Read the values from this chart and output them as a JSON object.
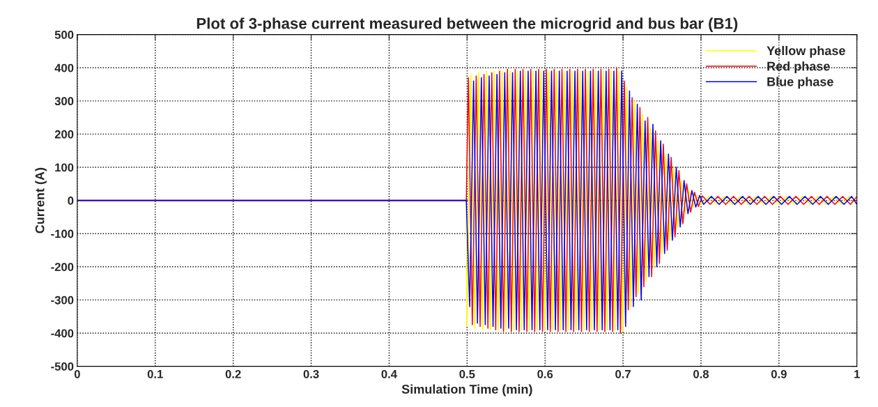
{
  "chart_data": {
    "type": "line",
    "title": "Plot of 3-phase current measured between the microgrid and bus bar (B1)",
    "xlabel": "Simulation Time (min)",
    "ylabel": "Current (A)",
    "xlim": [
      0,
      1
    ],
    "xticks": [
      0,
      0.1,
      0.2,
      0.3,
      0.4,
      0.5,
      0.6,
      0.7,
      0.8,
      0.9,
      1
    ],
    "ylim": [
      -500,
      500
    ],
    "yticks": [
      -500,
      -400,
      -300,
      -200,
      -100,
      0,
      100,
      200,
      300,
      400,
      500
    ],
    "grid": true,
    "legend": "top right",
    "marker": "none",
    "line_style": "solid",
    "series": [
      {
        "name": "Yellow phase",
        "color": "#ffff00",
        "x": [
          0,
          0.499,
          0.5,
          0.505,
          0.51,
          0.515,
          0.52,
          0.525,
          0.53,
          0.535,
          0.54,
          0.545,
          0.55,
          0.555,
          0.56,
          0.565,
          0.57,
          0.575,
          0.58,
          0.585,
          0.59,
          0.595,
          0.6,
          0.605,
          0.61,
          0.615,
          0.62,
          0.625,
          0.63,
          0.635,
          0.64,
          0.645,
          0.65,
          0.655,
          0.66,
          0.665,
          0.67,
          0.675,
          0.68,
          0.685,
          0.69,
          0.695,
          0.7,
          0.705,
          0.71,
          0.715,
          0.72,
          0.725,
          0.73,
          0.735,
          0.74,
          0.745,
          0.75,
          0.755,
          0.76,
          0.765,
          0.77,
          0.775,
          0.78,
          0.785,
          0.79,
          0.795,
          0.8,
          0.81,
          0.82,
          0.83,
          0.84,
          0.85,
          0.86,
          0.87,
          0.88,
          0.89,
          0.9,
          0.91,
          0.92,
          0.93,
          0.94,
          0.95,
          0.96,
          0.97,
          0.98,
          0.99,
          1.0
        ],
        "values": [
          0,
          0,
          -380,
          380,
          -385,
          385,
          -390,
          390,
          -390,
          390,
          -390,
          390,
          -390,
          390,
          -390,
          390,
          -390,
          390,
          -390,
          390,
          -390,
          390,
          -390,
          390,
          -390,
          390,
          -390,
          390,
          -390,
          390,
          -390,
          390,
          -390,
          390,
          -390,
          390,
          -390,
          390,
          -390,
          390,
          -390,
          390,
          -395,
          340,
          -320,
          300,
          -280,
          260,
          -240,
          220,
          -200,
          180,
          -160,
          140,
          -120,
          100,
          -80,
          60,
          -40,
          30,
          -20,
          15,
          -12,
          12,
          -12,
          12,
          -12,
          12,
          -12,
          12,
          -12,
          12,
          -12,
          12,
          -12,
          12,
          -12,
          12,
          -12,
          12,
          -12,
          12,
          -12
        ]
      },
      {
        "name": "Red phase",
        "color": "#ff0000",
        "x": [
          0,
          0.499,
          0.5017,
          0.5067,
          0.5117,
          0.5167,
          0.5217,
          0.5267,
          0.5317,
          0.5367,
          0.5417,
          0.5467,
          0.5517,
          0.5567,
          0.5617,
          0.5667,
          0.5717,
          0.5767,
          0.5817,
          0.5867,
          0.5917,
          0.5967,
          0.6017,
          0.6067,
          0.6117,
          0.6167,
          0.6217,
          0.6267,
          0.6317,
          0.6367,
          0.6417,
          0.6467,
          0.6517,
          0.6567,
          0.6617,
          0.6667,
          0.6717,
          0.6767,
          0.6817,
          0.6867,
          0.6917,
          0.6967,
          0.7017,
          0.7067,
          0.7117,
          0.7167,
          0.7217,
          0.7267,
          0.7317,
          0.7367,
          0.7417,
          0.7467,
          0.7517,
          0.7567,
          0.7617,
          0.7667,
          0.7717,
          0.7767,
          0.7817,
          0.7867,
          0.7917,
          0.7967,
          0.8017,
          0.8117,
          0.8217,
          0.8317,
          0.8417,
          0.8517,
          0.8617,
          0.8717,
          0.8817,
          0.8917,
          0.9017,
          0.9117,
          0.9217,
          0.9317,
          0.9417,
          0.9517,
          0.9617,
          0.9717,
          0.9817,
          0.9917,
          1.0
        ],
        "values": [
          0,
          0,
          370,
          -375,
          375,
          -380,
          380,
          -385,
          385,
          -390,
          390,
          -395,
          395,
          -395,
          395,
          -395,
          395,
          -395,
          395,
          -395,
          395,
          -395,
          395,
          -395,
          395,
          -395,
          395,
          -395,
          395,
          -395,
          395,
          -395,
          395,
          -395,
          395,
          -395,
          395,
          -395,
          395,
          -395,
          400,
          -400,
          360,
          -330,
          310,
          -290,
          280,
          -260,
          250,
          -230,
          210,
          -190,
          170,
          -150,
          130,
          -110,
          90,
          -70,
          50,
          -35,
          25,
          -18,
          14,
          -12,
          12,
          -12,
          12,
          -12,
          12,
          -12,
          12,
          -12,
          12,
          -12,
          12,
          -12,
          12,
          -12,
          12,
          -12,
          12,
          -12,
          12
        ]
      },
      {
        "name": "Blue phase",
        "color": "#0000ff",
        "x": [
          0,
          0.499,
          0.5033,
          0.5083,
          0.5133,
          0.5183,
          0.5233,
          0.5283,
          0.5333,
          0.5383,
          0.5433,
          0.5483,
          0.5533,
          0.5583,
          0.5633,
          0.5683,
          0.5733,
          0.5783,
          0.5833,
          0.5883,
          0.5933,
          0.5983,
          0.6033,
          0.6083,
          0.6133,
          0.6183,
          0.6233,
          0.6283,
          0.6333,
          0.6383,
          0.6433,
          0.6483,
          0.6533,
          0.6583,
          0.6633,
          0.6683,
          0.6733,
          0.6783,
          0.6833,
          0.6883,
          0.6933,
          0.6983,
          0.7033,
          0.7083,
          0.7133,
          0.7183,
          0.7233,
          0.7283,
          0.7333,
          0.7383,
          0.7433,
          0.7483,
          0.7533,
          0.7583,
          0.7633,
          0.7683,
          0.7733,
          0.7783,
          0.7833,
          0.7883,
          0.7933,
          0.7983,
          0.8033,
          0.8133,
          0.8233,
          0.8333,
          0.8433,
          0.8533,
          0.8633,
          0.8733,
          0.8833,
          0.8933,
          0.9033,
          0.9133,
          0.9233,
          0.9333,
          0.9433,
          0.9533,
          0.9633,
          0.9733,
          0.9833,
          0.9933,
          1.0
        ],
        "values": [
          0,
          0,
          -320,
          360,
          -370,
          370,
          -375,
          375,
          -380,
          380,
          -385,
          385,
          -385,
          385,
          -390,
          390,
          -390,
          390,
          -390,
          390,
          -390,
          390,
          -390,
          390,
          -390,
          390,
          -390,
          390,
          -390,
          390,
          -390,
          390,
          -390,
          390,
          -390,
          390,
          -390,
          390,
          -390,
          390,
          -390,
          390,
          -380,
          330,
          -320,
          290,
          -300,
          240,
          -230,
          230,
          -200,
          180,
          -160,
          140,
          -120,
          100,
          -80,
          60,
          -40,
          30,
          -20,
          15,
          -12,
          12,
          -12,
          12,
          -12,
          12,
          -12,
          12,
          -12,
          12,
          -12,
          12,
          -12,
          12,
          -12,
          12,
          -12,
          12,
          -12,
          12,
          -12
        ]
      }
    ]
  }
}
